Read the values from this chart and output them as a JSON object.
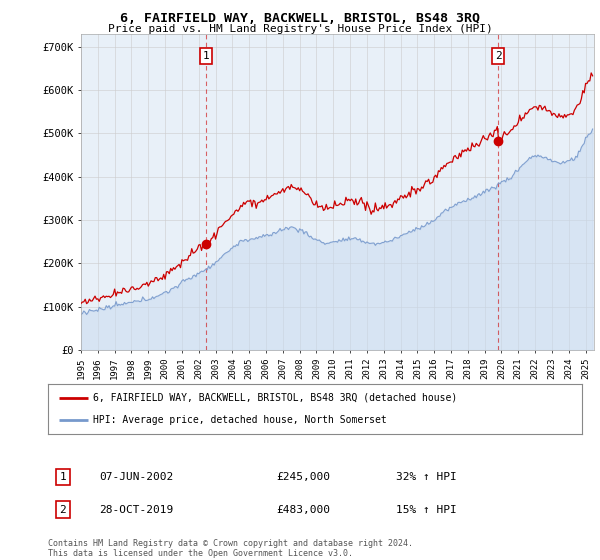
{
  "title": "6, FAIRFIELD WAY, BACKWELL, BRISTOL, BS48 3RQ",
  "subtitle": "Price paid vs. HM Land Registry's House Price Index (HPI)",
  "legend_line1": "6, FAIRFIELD WAY, BACKWELL, BRISTOL, BS48 3RQ (detached house)",
  "legend_line2": "HPI: Average price, detached house, North Somerset",
  "ann1_date": "07-JUN-2002",
  "ann1_price": "£245,000",
  "ann1_info": "32% ↑ HPI",
  "ann2_date": "28-OCT-2019",
  "ann2_price": "£483,000",
  "ann2_info": "15% ↑ HPI",
  "footer": "Contains HM Land Registry data © Crown copyright and database right 2024.\nThis data is licensed under the Open Government Licence v3.0.",
  "red_color": "#cc0000",
  "blue_color": "#7799cc",
  "blue_fill": "#ddeeff",
  "background_color": "#ffffff",
  "grid_color": "#cccccc",
  "ylim": [
    0,
    730000
  ],
  "yticks": [
    0,
    100000,
    200000,
    300000,
    400000,
    500000,
    600000,
    700000
  ],
  "ytick_labels": [
    "£0",
    "£100K",
    "£200K",
    "£300K",
    "£400K",
    "£500K",
    "£600K",
    "£700K"
  ],
  "sale1_year": 2002.4384,
  "sale1_price": 245000,
  "sale2_year": 2019.8082,
  "sale2_price": 483000,
  "xlim_start": 1995.0,
  "xlim_end": 2025.5
}
